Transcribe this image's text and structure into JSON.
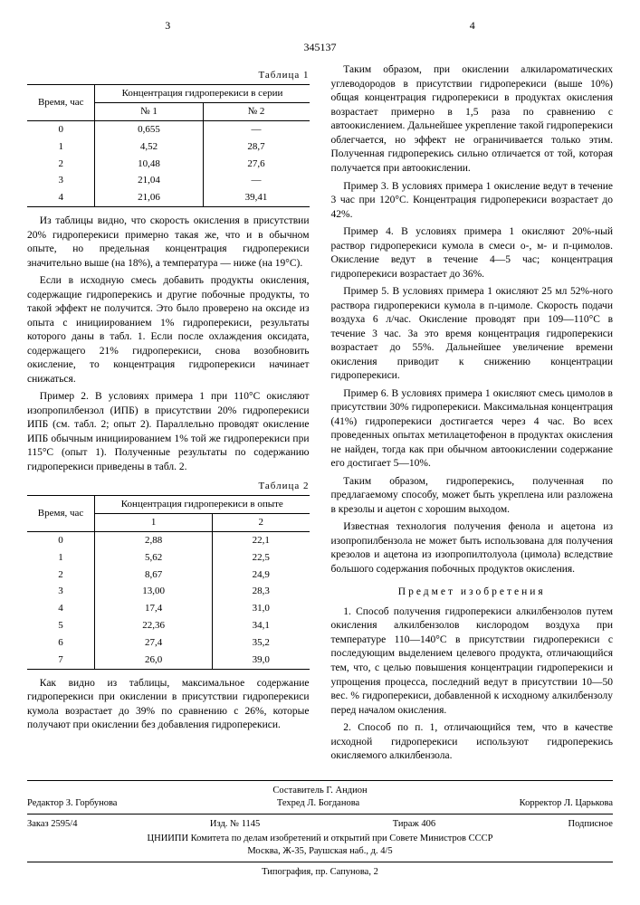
{
  "header": {
    "left_page": "3",
    "right_page": "4",
    "doc_number": "345137"
  },
  "table1": {
    "caption": "Таблица 1",
    "col1_header": "Время, час",
    "group_header": "Концентрация гидроперекиси в серии",
    "sub1": "№ 1",
    "sub2": "№ 2",
    "rows": [
      [
        "0",
        "0,655",
        "—"
      ],
      [
        "1",
        "4,52",
        "28,7"
      ],
      [
        "2",
        "10,48",
        "27,6"
      ],
      [
        "3",
        "21,04",
        "—"
      ],
      [
        "4",
        "21,06",
        "39,41"
      ]
    ]
  },
  "table2": {
    "caption": "Таблица 2",
    "col1_header": "Время, час",
    "group_header": "Концентрация гидроперекиси в опыте",
    "sub1": "1",
    "sub2": "2",
    "rows": [
      [
        "0",
        "2,88",
        "22,1"
      ],
      [
        "1",
        "5,62",
        "22,5"
      ],
      [
        "2",
        "8,67",
        "24,9"
      ],
      [
        "3",
        "13,00",
        "28,3"
      ],
      [
        "4",
        "17,4",
        "31,0"
      ],
      [
        "5",
        "22,36",
        "34,1"
      ],
      [
        "6",
        "27,4",
        "35,2"
      ],
      [
        "7",
        "26,0",
        "39,0"
      ]
    ]
  },
  "body": {
    "p1": "Из таблицы видно, что скорость окисления в присутствии 20% гидроперекиси примерно такая же, что и в обычном опыте, но предельная концентрация гидроперекиси значительно выше (на 18%), а температура — ниже (на 19°C).",
    "p2": "Если в исходную смесь добавить продукты окисления, содержащие гидроперекись и другие побочные продукты, то такой эффект не получится. Это было проверено на оксиде из опыта с инициированием 1% гидроперекиси, результаты которого даны в табл. 1. Если после охлаждения оксидата, содержащего 21% гидроперекиси, снова возобновить окисление, то концентрация гидроперекиси начинает снижаться.",
    "p3": "Пример 2. В условиях примера 1 при 110°C окисляют изопропилбензол (ИПБ) в присутствии 20% гидроперекиси ИПБ (см. табл. 2; опыт 2). Параллельно проводят окисление ИПБ обычным инициированием 1% той же гидроперекиси при 115°C (опыт 1). Полученные результаты по содержанию гидроперекиси приведены в табл. 2.",
    "p4": "Как видно из таблицы, максимальное содержание гидроперекиси при окислении в присутствии гидроперекиси кумола возрастает до 39% по сравнению с 26%, которые получают при окислении без добавления гидроперекиси.",
    "p5": "Таким образом, при окислении алкилароматических углеводородов в присутствии гидроперекиси (выше 10%) общая концентрация гидроперекиси в продуктах окисления возрастает примерно в 1,5 раза по сравнению с автоокислением. Дальнейшее укрепление такой гидроперекиси облегчается, но эффект не ограничивается только этим. Полученная гидроперекись сильно отличается от той, которая получается при автоокислении.",
    "p6": "Пример 3. В условиях примера 1 окисление ведут в течение 3 час при 120°C. Концентрация гидроперекиси возрастает до 42%.",
    "p7": "Пример 4. В условиях примера 1 окисляют 20%-ный раствор гидроперекиси кумола в смеси о-, м- и п-цимолов. Окисление ведут в течение 4—5 час; концентрация гидроперекиси возрастает до 36%.",
    "p8": "Пример 5. В условиях примера 1 окисляют 25 мл 52%-ного раствора гидроперекиси кумола в п-цимоле. Скорость подачи воздуха 6 л/час. Окисление проводят при 109—110°C в течение 3 час. За это время концентрация гидроперекиси возрастает до 55%. Дальнейшее увеличение времени окисления приводит к снижению концентрации гидроперекиси.",
    "p9": "Пример 6. В условиях примера 1 окисляют смесь цимолов в присутствии 30% гидроперекиси. Максимальная концентрация (41%) гидроперекиси достигается через 4 час. Во всех проведенных опытах метилацетофенон в продуктах окисления не найден, тогда как при обычном автоокислении содержание его достигает 5—10%.",
    "p10": "Таким образом, гидроперекись, полученная по предлагаемому способу, может быть укреплена или разложена в крезолы и ацетон с хорошим выходом.",
    "p11": "Известная технология получения фенола и ацетона из изопропилбензола не может быть использована для получения крезолов и ацетона из изопропилтолуола (цимола) вследствие большого содержания побочных продуктов окисления."
  },
  "claims": {
    "title": "Предмет изобретения",
    "c1": "1. Способ получения гидроперекиси алкилбензолов путем окисления алкилбензолов кислородом воздуха при температуре 110—140°C в присутствии гидроперекиси с последующим выделением целевого продукта, отличающийся тем, что, с целью повышения концентрации гидроперекиси и упрощения процесса, последний ведут в присутствии 10—50 вес. % гидроперекиси, добавленной к исходному алкилбензолу перед началом окисления.",
    "c2": "2. Способ по п. 1, отличающийся тем, что в качестве исходной гидроперекиси используют гидроперекись окисляемого алкилбензола."
  },
  "footer": {
    "compiler": "Составитель Г. Андион",
    "editor": "Редактор З. Горбунова",
    "tech": "Техред Л. Богданова",
    "corrector": "Корректор Л. Царькова",
    "order": "Заказ 2595/4",
    "izd": "Изд. № 1145",
    "tirazh": "Тираж 406",
    "sub": "Подписное",
    "org": "ЦНИИПИ Комитета по делам изобретений и открытий при Совете Министров СССР",
    "addr": "Москва, Ж-35, Раушская наб., д. 4/5",
    "typo": "Типография, пр. Сапунова, 2"
  }
}
